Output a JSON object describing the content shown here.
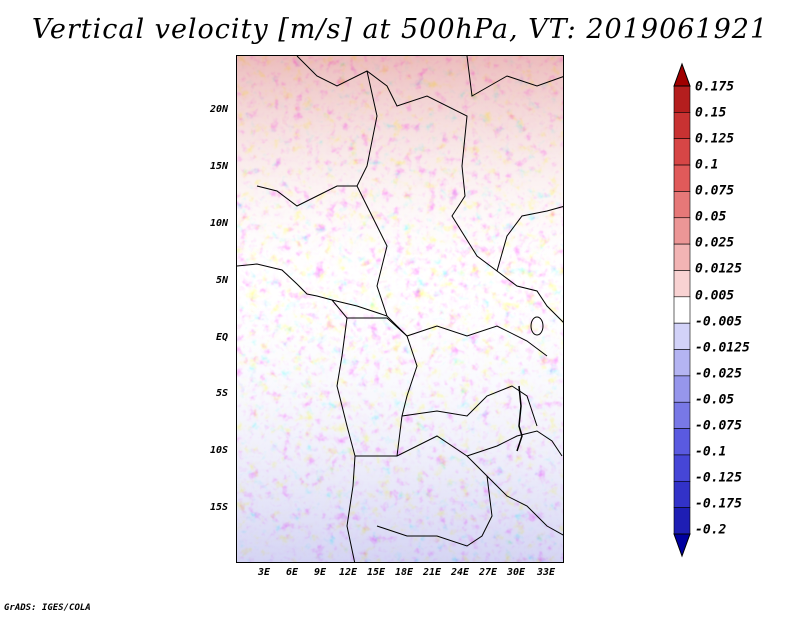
{
  "title": "Vertical velocity [m/s] at 500hPa, VT: 2019061921",
  "credit": "GrADS: IGES/COLA",
  "lat_labels": [
    "20N",
    "15N",
    "10N",
    "5N",
    "EQ",
    "5S",
    "10S",
    "15S"
  ],
  "lon_labels": [
    "3E",
    "6E",
    "9E",
    "12E",
    "15E",
    "18E",
    "21E",
    "24E",
    "27E",
    "30E",
    "33E"
  ],
  "colorbar": {
    "labels": [
      "0.175",
      "0.15",
      "0.125",
      "0.1",
      "0.075",
      "0.05",
      "0.025",
      "0.0125",
      "0.005",
      "-0.005",
      "-0.0125",
      "-0.025",
      "-0.05",
      "-0.075",
      "-0.1",
      "-0.125",
      "-0.175",
      "-0.2"
    ],
    "colors": [
      "#a00000",
      "#b41e1e",
      "#c83232",
      "#d74646",
      "#e05a5a",
      "#e67878",
      "#ec9696",
      "#f2b4b4",
      "#f8d2d2",
      "#ffffff",
      "#d2d2f8",
      "#b4b4f2",
      "#9696ec",
      "#7878e6",
      "#5a5ae0",
      "#4646d7",
      "#3232c8",
      "#1e1eb4",
      "#0000a0"
    ]
  }
}
